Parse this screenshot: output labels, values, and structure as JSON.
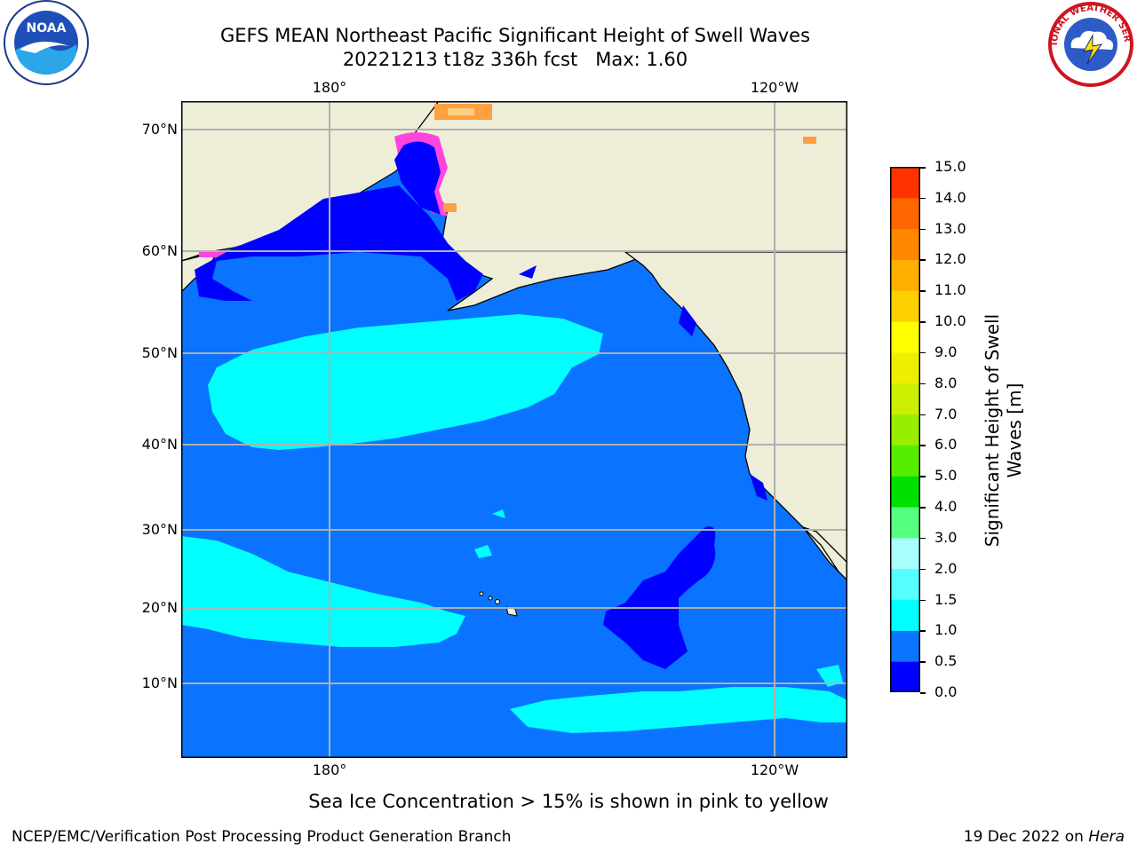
{
  "title": {
    "line1": "GEFS MEAN Northeast Pacific Significant Height of Swell Waves",
    "line2": "20221213 t18z 336h fcst   Max: 1.60"
  },
  "map": {
    "type": "filled-contour-map",
    "region": "Northeast Pacific",
    "lat_labels": [
      "70°N",
      "60°N",
      "50°N",
      "40°N",
      "30°N",
      "20°N",
      "10°N"
    ],
    "lon_labels_top": [
      "180°",
      "120°W"
    ],
    "lon_labels_bottom": [
      "180°",
      "120°W"
    ],
    "grid": true,
    "colors": {
      "land": "#eeedd8",
      "ocean_0_0_5": "#0000ff",
      "ocean_0_5_1_0": "#0a73ff",
      "ocean_1_0_1_5": "#00ffff",
      "ice_pink": "#ff44e0",
      "ice_orange": "#ffa040",
      "gridline": "#b0b0b0"
    }
  },
  "colorbar": {
    "title": "Significant Height of Swell Waves [m]",
    "title_line1": "Significant Height of Swell",
    "title_line2": "Waves [m]",
    "tick_labels": [
      "15.0",
      "14.0",
      "13.0",
      "12.0",
      "11.0",
      "10.0",
      "9.0",
      "8.0",
      "7.0",
      "6.0",
      "5.0",
      "4.0",
      "3.0",
      "2.0",
      "1.5",
      "1.0",
      "0.5",
      "0.0"
    ],
    "bin_colors_bottom_to_top": [
      "#0000ff",
      "#0a73ff",
      "#00ffff",
      "#55ffff",
      "#aaffff",
      "#55ff80",
      "#00e000",
      "#55ee00",
      "#99ee00",
      "#ccee00",
      "#eeee00",
      "#ffff00",
      "#ffd000",
      "#ffb000",
      "#ff8800",
      "#ff6600",
      "#ff3300",
      "#ff0000"
    ]
  },
  "ice_note": "Sea Ice Concentration > 15% is shown in pink to yellow",
  "footer": {
    "left": "NCEP/EMC/Verification Post Processing Product Generation Branch",
    "right_prefix": "19 Dec 2022 on ",
    "right_machine": "Hera"
  },
  "logos": {
    "noaa_text": "NOAA",
    "nws_text": "NATIONAL WEATHER SERVICE"
  }
}
